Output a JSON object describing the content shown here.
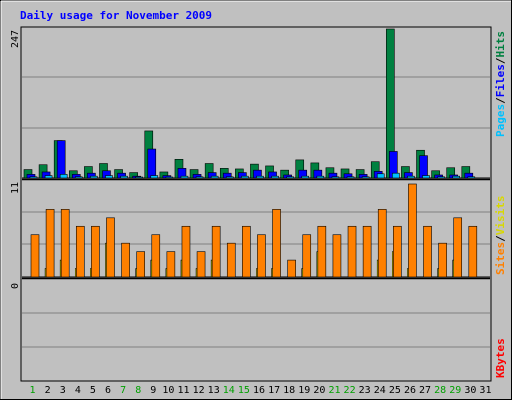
{
  "chart_data": [
    {
      "type": "bar",
      "title": "Daily usage for November 2009",
      "panel": "hits-files-pages",
      "ymax_label": "247",
      "ylim": [
        0,
        247
      ],
      "categories": [
        "1",
        "2",
        "3",
        "4",
        "5",
        "6",
        "7",
        "8",
        "9",
        "10",
        "11",
        "12",
        "13",
        "14",
        "15",
        "16",
        "17",
        "18",
        "19",
        "20",
        "21",
        "22",
        "23",
        "24",
        "25",
        "26",
        "27",
        "28",
        "29",
        "30",
        "31"
      ],
      "weekend_days": [
        "1",
        "7",
        "8",
        "14",
        "15",
        "21",
        "22",
        "28",
        "29"
      ],
      "series": [
        {
          "name": "Hits",
          "color": "#008040",
          "values": [
            14,
            22,
            62,
            12,
            19,
            24,
            14,
            9,
            78,
            10,
            31,
            14,
            24,
            16,
            15,
            23,
            20,
            13,
            30,
            25,
            17,
            15,
            14,
            27,
            247,
            19,
            46,
            12,
            17,
            19,
            0
          ]
        },
        {
          "name": "Files",
          "color": "#0000ff",
          "values": [
            6,
            10,
            62,
            6,
            8,
            12,
            8,
            3,
            48,
            4,
            16,
            6,
            9,
            8,
            9,
            13,
            10,
            5,
            13,
            13,
            8,
            7,
            6,
            11,
            44,
            9,
            37,
            5,
            5,
            8,
            0
          ]
        },
        {
          "name": "Pages",
          "color": "#00c0ff",
          "values": [
            2,
            4,
            6,
            2,
            3,
            4,
            3,
            1,
            4,
            1,
            3,
            2,
            3,
            2,
            3,
            3,
            3,
            2,
            3,
            3,
            2,
            2,
            2,
            7,
            8,
            3,
            4,
            2,
            3,
            2,
            0
          ]
        }
      ]
    },
    {
      "type": "bar",
      "panel": "visits-sites",
      "ymax_label": "11",
      "ylim": [
        0,
        11
      ],
      "categories": [
        "1",
        "2",
        "3",
        "4",
        "5",
        "6",
        "7",
        "8",
        "9",
        "10",
        "11",
        "12",
        "13",
        "14",
        "15",
        "16",
        "17",
        "18",
        "19",
        "20",
        "21",
        "22",
        "23",
        "24",
        "25",
        "26",
        "27",
        "28",
        "29",
        "30",
        "31"
      ],
      "series": [
        {
          "name": "Visits",
          "color": "#ffff00",
          "values": [
            0,
            1,
            2,
            1,
            1,
            4,
            0,
            1,
            2,
            1,
            2,
            1,
            2,
            0,
            0,
            1,
            1,
            0,
            1,
            3,
            0,
            0,
            0,
            2,
            3,
            1,
            0,
            1,
            2,
            0,
            0
          ]
        },
        {
          "name": "Sites",
          "color": "#ff8000",
          "values": [
            5,
            8,
            8,
            6,
            6,
            7,
            4,
            3,
            5,
            3,
            6,
            3,
            6,
            4,
            6,
            5,
            8,
            2,
            5,
            6,
            5,
            6,
            6,
            8,
            6,
            11,
            6,
            4,
            7,
            6,
            0
          ]
        }
      ]
    },
    {
      "type": "bar",
      "panel": "kbytes",
      "ymax_label": "0",
      "ylim": [
        0,
        1
      ],
      "categories": [
        "1",
        "2",
        "3",
        "4",
        "5",
        "6",
        "7",
        "8",
        "9",
        "10",
        "11",
        "12",
        "13",
        "14",
        "15",
        "16",
        "17",
        "18",
        "19",
        "20",
        "21",
        "22",
        "23",
        "24",
        "25",
        "26",
        "27",
        "28",
        "29",
        "30",
        "31"
      ],
      "series": [
        {
          "name": "KBytes",
          "color": "#ff0000",
          "values": [
            0,
            0,
            0,
            0,
            0,
            0,
            0,
            0,
            0,
            0,
            0,
            0,
            0,
            0,
            0,
            0,
            0,
            0,
            0,
            0,
            0,
            0,
            0,
            0,
            0,
            0,
            0,
            0,
            0,
            0,
            0
          ]
        }
      ]
    }
  ],
  "colors": {
    "frame_bg": "#c0c0c0",
    "plot_bg": "#c0c0c0",
    "grid": "#808080",
    "title": "#0000ff",
    "day_label": "#000000",
    "weekend_label": "#00a000",
    "separator": "#000000"
  }
}
